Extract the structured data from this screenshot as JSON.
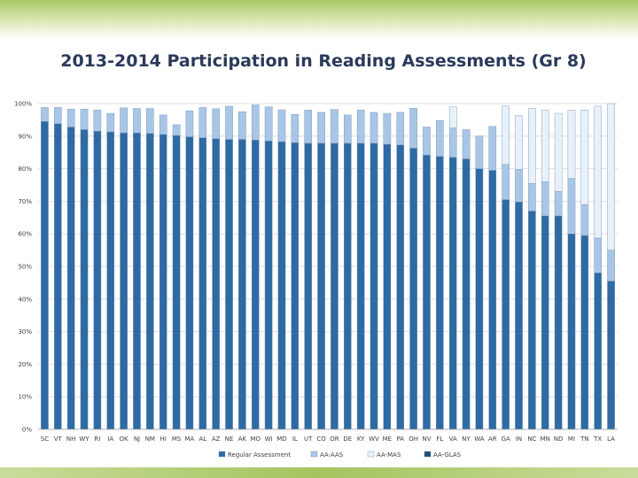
{
  "chart_data": {
    "type": "bar",
    "stacked": true,
    "title": "2013-2014 Participation in Reading Assessments (Gr 8)",
    "xlabel": "",
    "ylabel": "",
    "ylim": [
      0,
      100
    ],
    "y_ticks": [
      "0%",
      "10%",
      "20%",
      "30%",
      "40%",
      "50%",
      "60%",
      "70%",
      "80%",
      "90%",
      "100%"
    ],
    "grid": true,
    "legend_position": "bottom",
    "categories": [
      "SC",
      "VT",
      "NH",
      "WY",
      "RI",
      "IA",
      "OK",
      "NJ",
      "NM",
      "HI",
      "MS",
      "MA",
      "AL",
      "AZ",
      "NE",
      "AK",
      "MO",
      "WI",
      "MD",
      "IL",
      "UT",
      "CO",
      "OR",
      "DE",
      "KY",
      "WV",
      "ME",
      "PA",
      "OH",
      "NV",
      "FL",
      "VA",
      "NY",
      "WA",
      "AR",
      "GA",
      "IN",
      "NC",
      "MN",
      "ND",
      "MI",
      "TN",
      "TX",
      "LA"
    ],
    "series": [
      {
        "name": "Regular Assessment",
        "color": "#2e6aa3",
        "values": [
          94.5,
          93.8,
          92.8,
          92.0,
          91.5,
          91.3,
          91.0,
          91.0,
          90.8,
          90.5,
          90.2,
          89.8,
          89.5,
          89.2,
          89.0,
          89.0,
          88.8,
          88.5,
          88.3,
          88.0,
          87.8,
          87.8,
          87.8,
          87.8,
          87.8,
          87.8,
          87.5,
          87.3,
          86.3,
          84.2,
          83.8,
          83.5,
          83.0,
          80.0,
          79.5,
          70.5,
          69.8,
          67.0,
          65.5,
          65.5,
          60.0,
          59.5,
          48.0,
          45.5
        ]
      },
      {
        "name": "AA-AAS",
        "color": "#a9c6e6",
        "values": [
          4.3,
          5.0,
          5.5,
          6.3,
          6.5,
          5.7,
          7.7,
          7.5,
          7.7,
          6.0,
          3.3,
          8.0,
          9.3,
          9.2,
          10.2,
          8.5,
          10.8,
          10.5,
          9.8,
          8.7,
          10.2,
          9.5,
          10.4,
          8.7,
          10.2,
          9.5,
          9.5,
          10.0,
          12.3,
          8.6,
          11.0,
          9.0,
          9.0,
          10.0,
          13.5,
          10.8,
          10.0,
          8.5,
          10.5,
          7.5,
          17.0,
          9.5,
          10.7,
          9.5
        ]
      },
      {
        "name": "AA-MAS",
        "color": "#e8f1fa",
        "values": [
          0,
          0,
          0,
          0,
          0,
          0,
          0,
          0,
          0,
          0,
          0,
          0,
          0,
          0,
          0,
          0,
          0,
          0,
          0,
          0,
          0,
          0,
          0,
          0,
          0,
          0,
          0,
          0,
          0,
          0,
          0,
          6.5,
          0,
          0,
          0,
          18.0,
          16.5,
          23.0,
          22.0,
          24.0,
          21.0,
          29.0,
          40.5,
          45.0
        ]
      },
      {
        "name": "AA-GLAS",
        "color": "#1f4e7a",
        "values": [
          0,
          0,
          0,
          0,
          0,
          0,
          0,
          0,
          0,
          0,
          0,
          0,
          0,
          0,
          0,
          0,
          0,
          0,
          0,
          0,
          0,
          0,
          0,
          0,
          0,
          0,
          0,
          0,
          0,
          0,
          0,
          0,
          0,
          0,
          0,
          0,
          0,
          0,
          0,
          0,
          0,
          0,
          0,
          0
        ]
      }
    ]
  }
}
